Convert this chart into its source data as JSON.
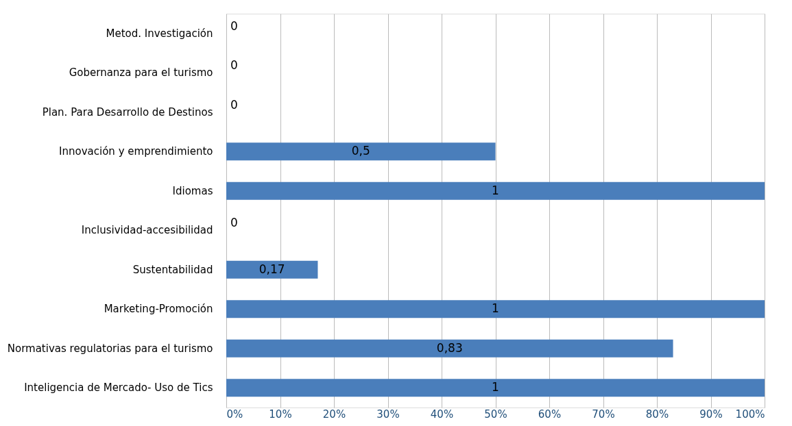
{
  "chart_data": {
    "type": "bar",
    "orientation": "horizontal",
    "categories": [
      "Metod. Investigación",
      "Gobernanza para el turismo",
      "Plan. Para Desarrollo de Destinos",
      "Innovación y emprendimiento",
      "Idiomas",
      "Inclusividad-accesibilidad",
      "Sustentabilidad",
      "Marketing-Promoción",
      "Normativas regulatorias para el turismo",
      "Inteligencia de Mercado- Uso de Tics"
    ],
    "values": [
      0,
      0,
      0,
      0.5,
      1,
      0,
      0.17,
      1,
      0.83,
      1
    ],
    "value_labels": [
      "0",
      "0",
      "0",
      "0,5",
      "1",
      "0",
      "0,17",
      "1",
      "0,83",
      "1"
    ],
    "color": "#4a7ebb",
    "xlim": [
      0,
      1
    ],
    "xticks": [
      {
        "value": 0,
        "label": "0%"
      },
      {
        "value": 0.1,
        "label": "10%"
      },
      {
        "value": 0.2,
        "label": "20%"
      },
      {
        "value": 0.3,
        "label": "30%"
      },
      {
        "value": 0.4,
        "label": "40%"
      },
      {
        "value": 0.5,
        "label": "50%"
      },
      {
        "value": 0.6,
        "label": "60%"
      },
      {
        "value": 0.7,
        "label": "70%"
      },
      {
        "value": 0.8,
        "label": "80%"
      },
      {
        "value": 0.9,
        "label": "90%"
      },
      {
        "value": 1,
        "label": "100%"
      }
    ],
    "grid": "x"
  }
}
